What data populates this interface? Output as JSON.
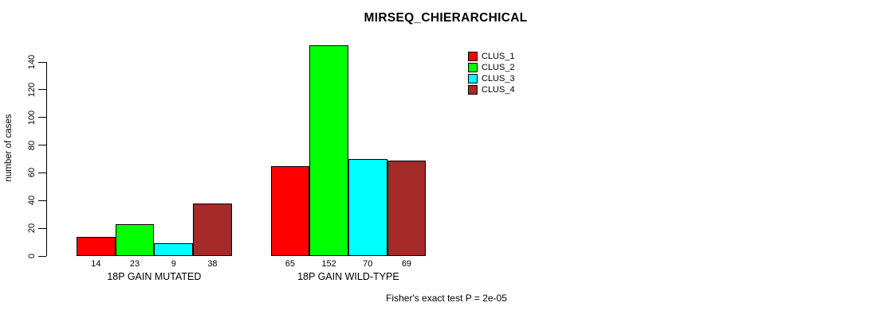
{
  "chart_data": {
    "type": "bar",
    "title": "MIRSEQ_CHIERARCHICAL",
    "groups": [
      "18P GAIN MUTATED",
      "18P GAIN WILD-TYPE"
    ],
    "series": [
      {
        "name": "CLUS_1",
        "color": "#FF0000",
        "values": [
          14,
          65
        ]
      },
      {
        "name": "CLUS_2",
        "color": "#00FF00",
        "values": [
          23,
          152
        ]
      },
      {
        "name": "CLUS_3",
        "color": "#00FFFF",
        "values": [
          9,
          70
        ]
      },
      {
        "name": "CLUS_4",
        "color": "#A52A2A",
        "values": [
          38,
          69
        ]
      }
    ],
    "xlabel": "",
    "ylabel": "number of cases",
    "yticks": [
      0,
      20,
      40,
      60,
      80,
      100,
      120,
      140
    ],
    "ylim": [
      0,
      152
    ],
    "bar_value_labels": true,
    "legend_position": "top-right",
    "grid": false,
    "bar_border_color": "#000000",
    "axis_color": "#000000",
    "background_color": "#FFFFFF"
  },
  "annotation": "Fisher's exact test P = 2e-05"
}
